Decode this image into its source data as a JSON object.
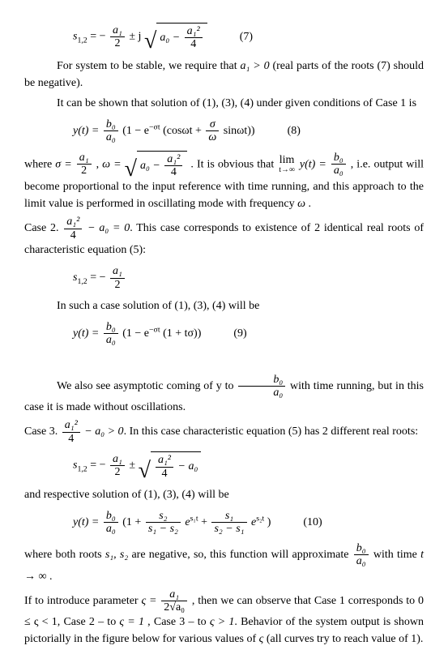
{
  "eq7": {
    "lhs": "s",
    "sub": "1,2",
    "part1": " = − ",
    "fracNum": "a₁",
    "fracDen": "2",
    "part2": " ± j",
    "radNum": "a₁²",
    "radDen": "4",
    "radPre": "a₀ − ",
    "num": "(7)"
  },
  "p1": "For system to be stable, we require that ",
  "p1b": "a₁ > 0",
  "p1c": " (real parts of the roots (7) should be negative).",
  "p2": "It can be shown that solution of (1), (3), (4) under given conditions of Case 1 is",
  "eq8": {
    "yOft": "y(t) = ",
    "fracNum": "b₀",
    "fracDen": "a₀",
    "mid1": "(1 − e",
    "expSup": "−σt",
    "mid2": " (cosωt + ",
    "frac2Num": "σ",
    "frac2Den": "ω",
    "mid3": " sinωt))",
    "num": "(8)"
  },
  "p3a": "where  ",
  "p3sigma": "σ = ",
  "p3sigmaNum": "a₁",
  "p3sigmaDen": "2",
  "p3comma": ",  ",
  "p3omega": "ω = ",
  "p3radPre": "a₀ − ",
  "p3radNum": "a₁²",
  "p3radDen": "4",
  "p3b": ".  It  is  obvious  that  ",
  "p3limTop": "lim",
  "p3limBot": "t→∞",
  "p3limExpr": " y(t) = ",
  "p3fracNum": "b₀",
  "p3fracDen": "a₀",
  "p3c": ",  i.e.  output  will  become proportional to the input reference with time running, and this approach to the limit value is performed in oscillating mode with frequency ",
  "p3d": "ω",
  "p3e": " .",
  "case2a": "Case 2. ",
  "case2fracNum": "a₁²",
  "case2fracDen": "4",
  "case2b": " − a₀ = 0",
  "case2c": ". This case corresponds to existence of 2 identical real roots of characteristic equation (5):",
  "eqC2": {
    "lhs": "s",
    "sub": "1,2",
    "eq": " = − ",
    "fracNum": "a₁",
    "fracDen": "2"
  },
  "p4": "In such a case solution of (1), (3), (4) will be",
  "eq9": {
    "yOft": "y(t) = ",
    "fracNum": "b₀",
    "fracDen": "a₀",
    "mid1": "(1 − e",
    "expSup": "−σt",
    "mid2": " (1 + tσ))",
    "num": "(9)"
  },
  "p5a": "We also see asymptotic coming of y to ",
  "p5fracNum": "b₀",
  "p5fracDen": "a₀",
  "p5b": " with time running, but in this case it is made without oscillations.",
  "case3a": "Case 3. ",
  "case3fracNum": "a₁²",
  "case3fracDen": "4",
  "case3b": " − a₀ > 0",
  "case3c": ". In this case characteristic equation (5) has 2 different real roots:",
  "eqC3": {
    "lhs": "s",
    "sub": "1,2",
    "eq": " = − ",
    "frac1Num": "a₁",
    "frac1Den": "2",
    "pm": " ± ",
    "radNum": "a₁²",
    "radDen": "4",
    "radPost": " − a₀"
  },
  "p6": "and respective solution of (1), (3), (4) will be",
  "eq10": {
    "yOft": "y(t) = ",
    "fracNum": "b₀",
    "fracDen": "a₀",
    "open": "(1 + ",
    "f1Num": "s₂",
    "f1Den": "s₁ − s₂",
    "e1": " e",
    "e1sup": "s₁t",
    "plus": " + ",
    "f2Num": "s₁",
    "f2Den": "s₂ − s₁",
    "e2": " e",
    "e2sup": "s₂t",
    "close": " )",
    "num": "(10)"
  },
  "p7a": "where both roots ",
  "p7b": "s₁, s₂",
  "p7c": " are negative, so, this function will approximate ",
  "p7fracNum": "b₀",
  "p7fracDen": "a₀",
  "p7d": " with time ",
  "p7e": "t → ∞",
  "p7f": " .",
  "p8a": "If to introduce parameter ",
  "p8zeta": "ς = ",
  "p8fracNum": "a₁",
  "p8fracDen": "2√a₀",
  "p8b": ", then we can observe that Case 1 corresponds to ",
  "p8c": "0 ≤ ς < 1",
  "p8d": ", Case 2 – to ",
  "p8e": "ς = 1",
  "p8f": ", Case 3 – to ",
  "p8g": "ς > 1",
  "p8h": ". Behavior of the system output is shown pictorially in the figure below for various values of ",
  "p8i": "ς",
  "p8j": " (all curves try to reach value of 1)."
}
